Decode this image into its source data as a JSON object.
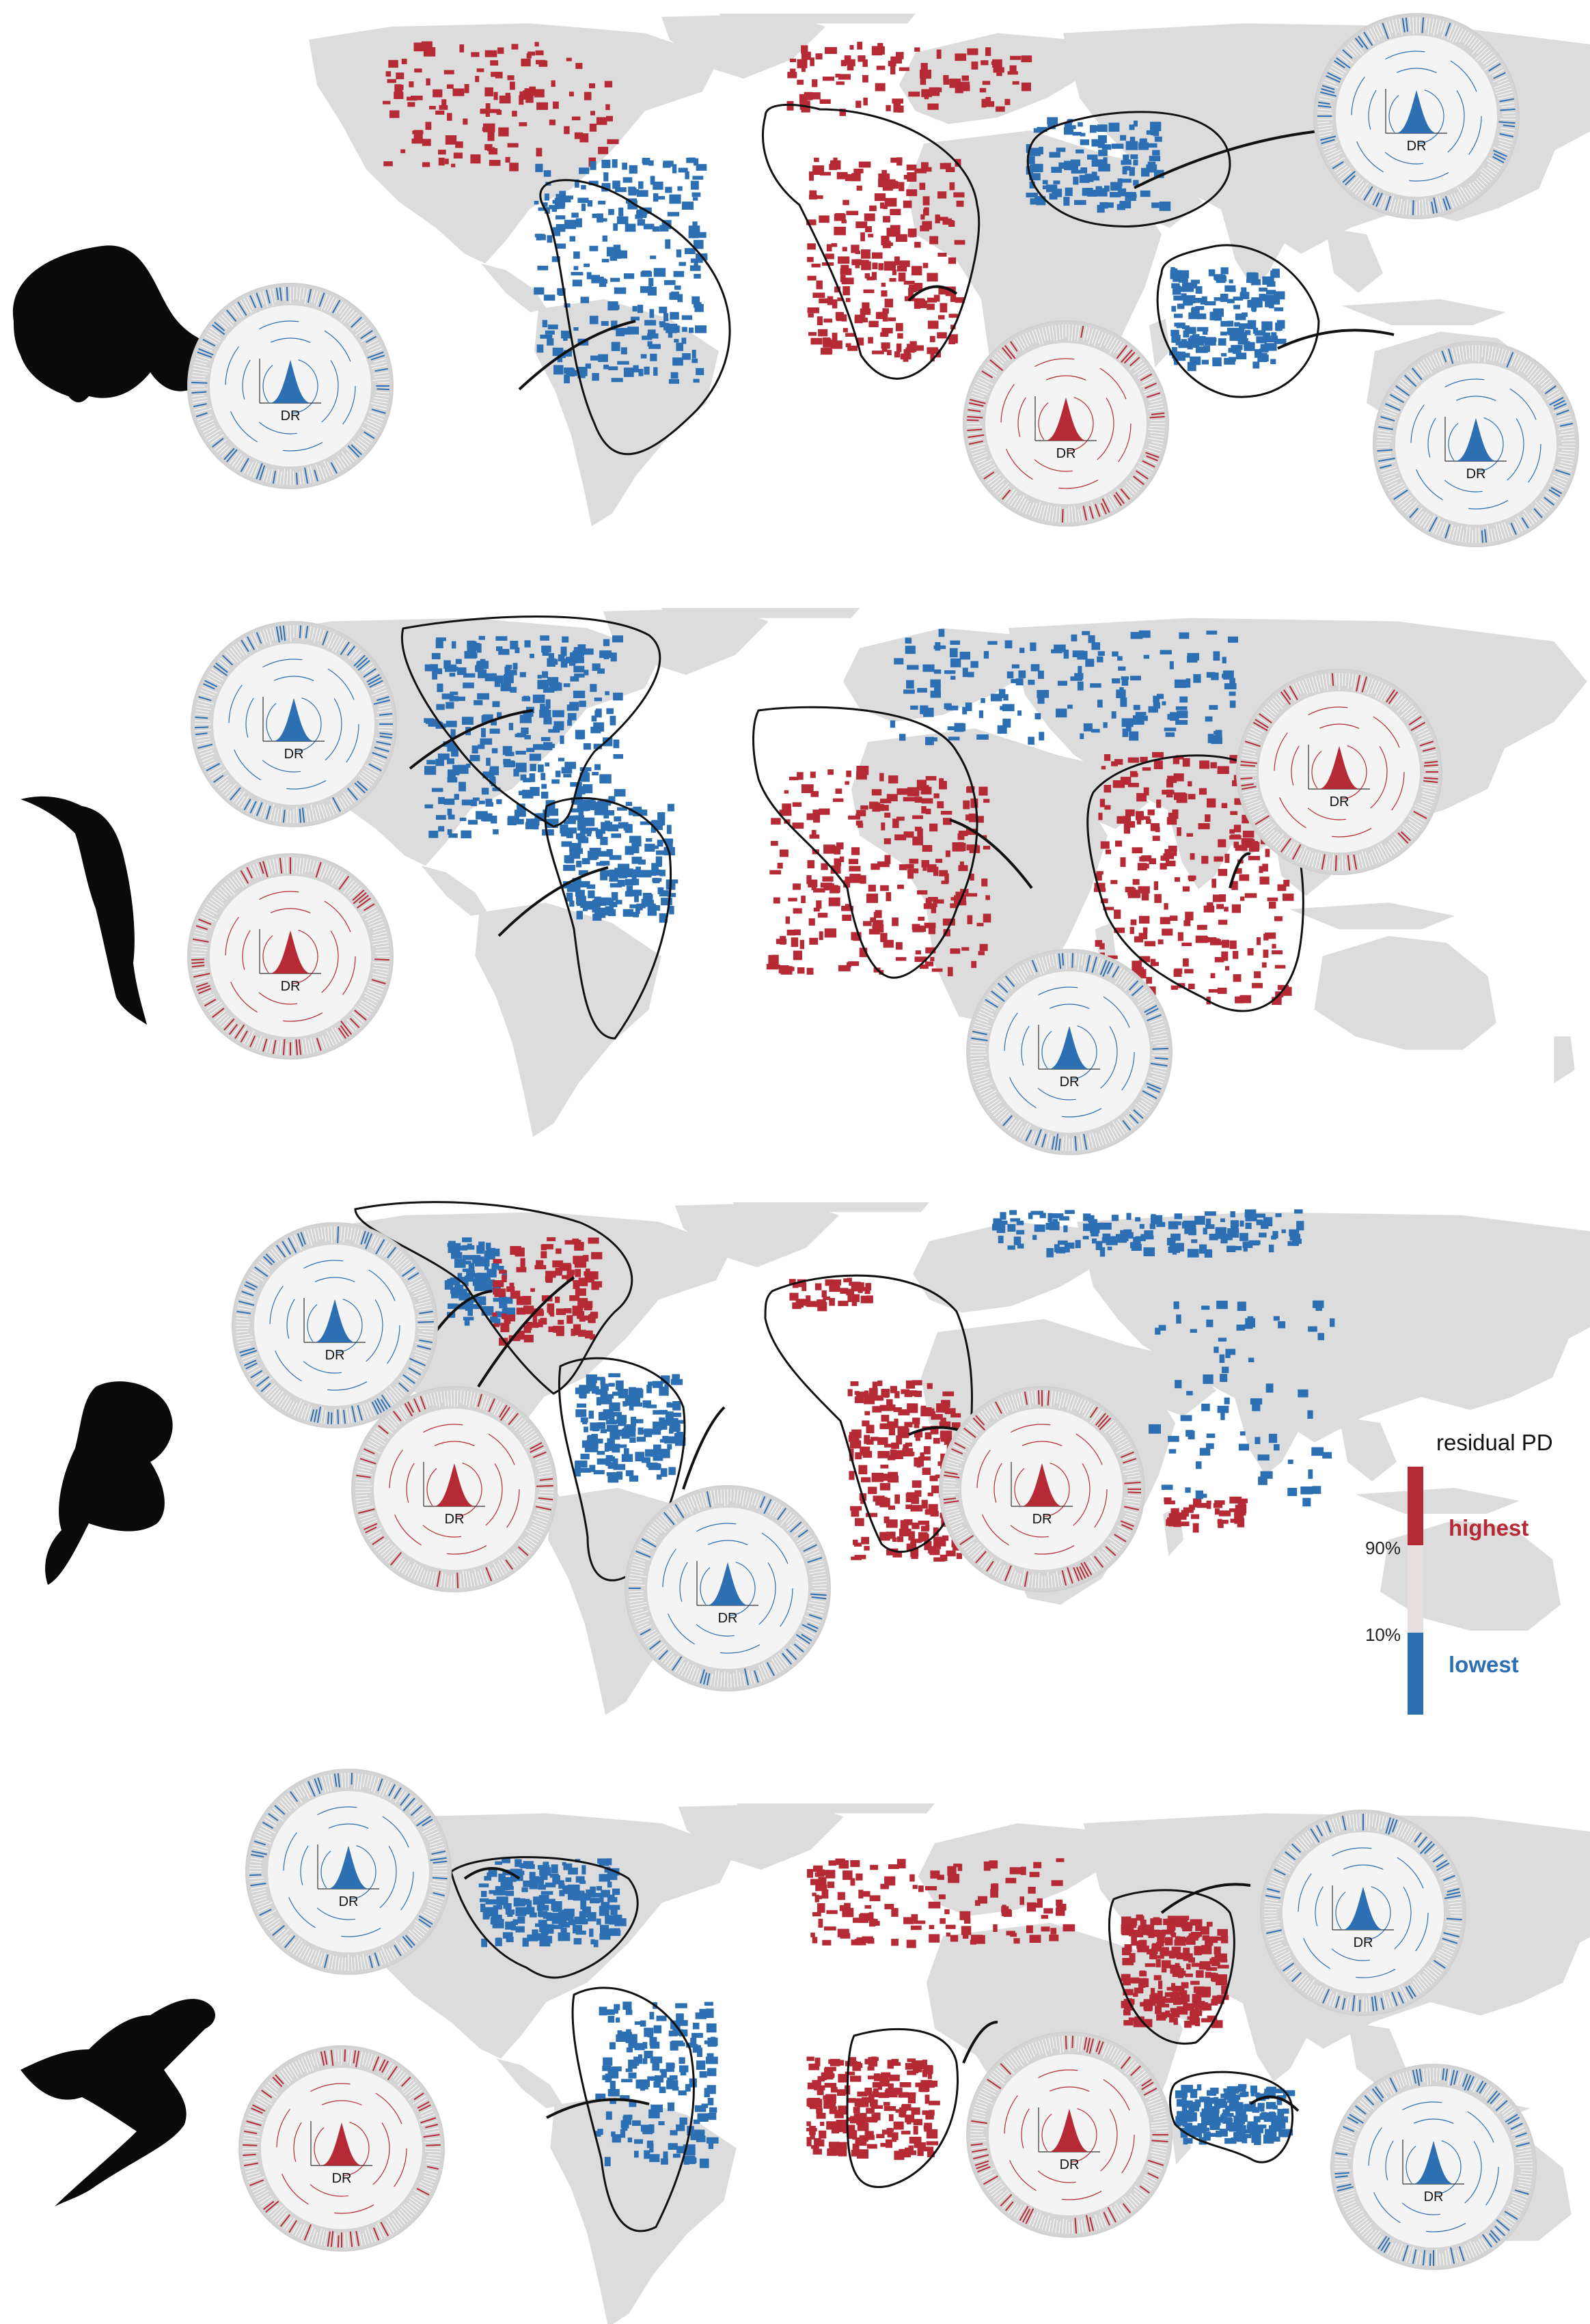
{
  "colors": {
    "land": "#dcdcdc",
    "high": "#b52a35",
    "low": "#2c6fb3",
    "mid": "#e6e0e0",
    "outline": "#111111",
    "silhouette": "#0a0a0a",
    "tree_ring": "#d4d4d4"
  },
  "legend": {
    "title": "residual PD",
    "high_label": "highest",
    "low_label": "lowest",
    "tick_upper": "90%",
    "tick_lower": "10%"
  },
  "axis_label": "DR",
  "panels": [
    {
      "taxon_icon": "frog-silhouette-icon",
      "insets": [
        {
          "region": "South America",
          "color": "low"
        },
        {
          "region": "Africa",
          "color": "high"
        },
        {
          "region": "South-East Asia",
          "color": "low"
        },
        {
          "region": "Australia",
          "color": "low"
        }
      ]
    },
    {
      "taxon_icon": "bird-silhouette-icon",
      "insets": [
        {
          "region": "North America",
          "color": "low"
        },
        {
          "region": "South America",
          "color": "low"
        },
        {
          "region": "Africa",
          "color": "high"
        },
        {
          "region": "Australasia",
          "color": "high"
        }
      ]
    },
    {
      "taxon_icon": "squirrel-silhouette-icon",
      "insets": [
        {
          "region": "North America",
          "color": "low"
        },
        {
          "region": "Central America",
          "color": "high"
        },
        {
          "region": "South America",
          "color": "low"
        },
        {
          "region": "Africa",
          "color": "high"
        }
      ]
    },
    {
      "taxon_icon": "lizard-silhouette-icon",
      "insets": [
        {
          "region": "North America",
          "color": "low"
        },
        {
          "region": "South America",
          "color": "low"
        },
        {
          "region": "Southern Africa",
          "color": "high"
        },
        {
          "region": "South-East Asia",
          "color": "high"
        },
        {
          "region": "Australia",
          "color": "low"
        }
      ]
    }
  ]
}
